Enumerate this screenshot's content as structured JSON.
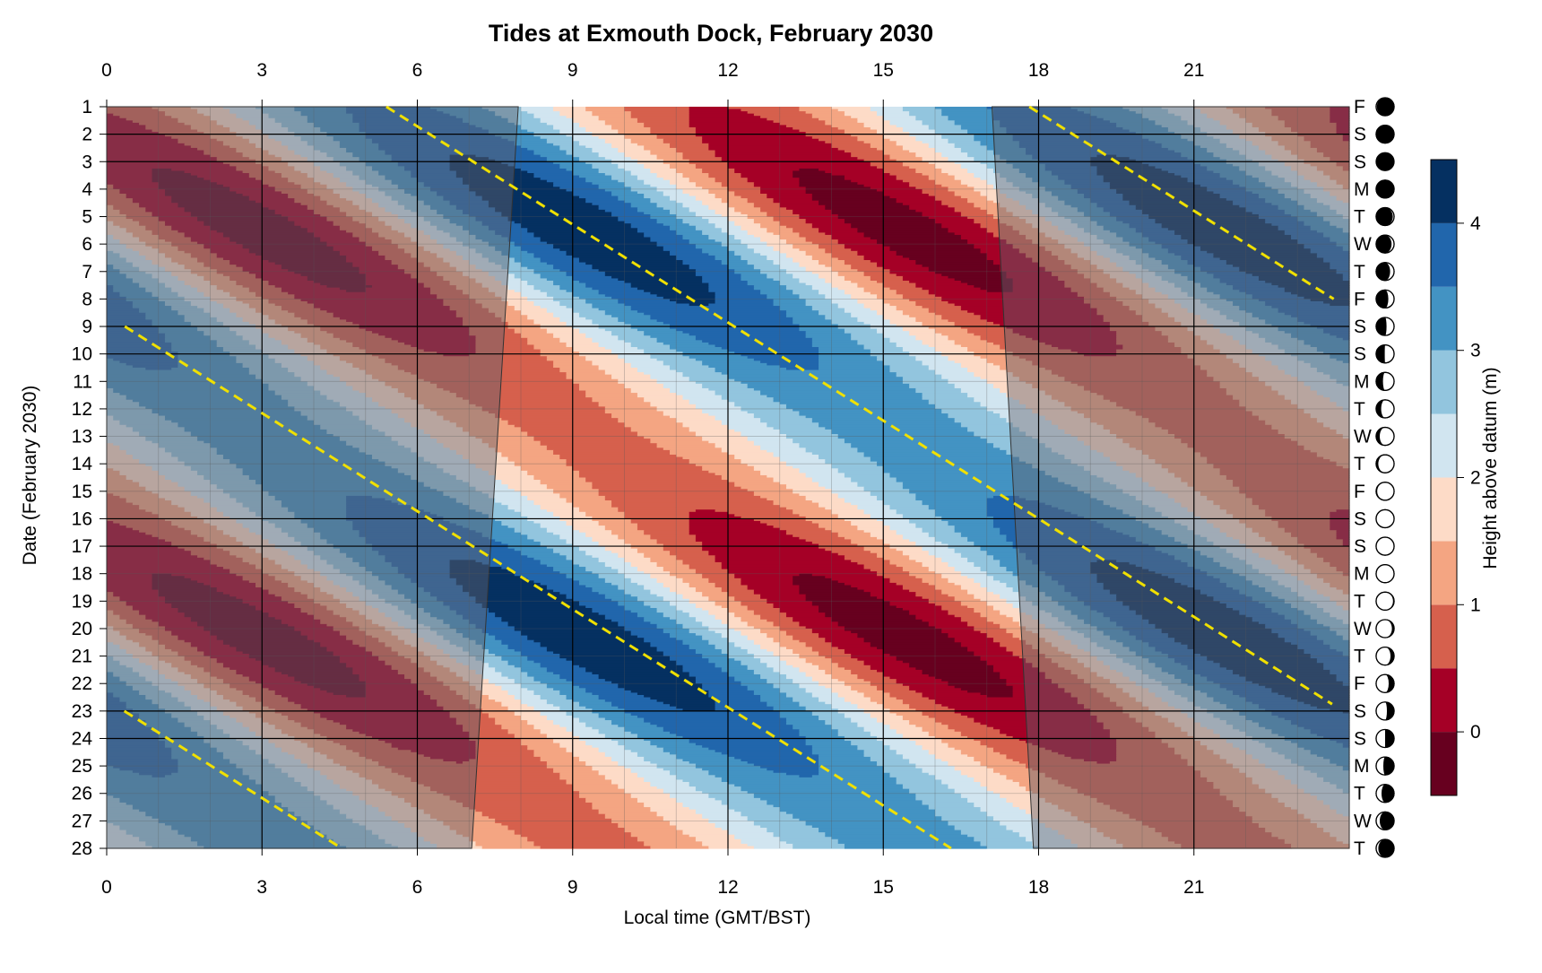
{
  "chart_data": {
    "type": "heatmap",
    "title": "Tides at Exmouth Dock, February 2030",
    "xlabel": "Local time (GMT/BST)",
    "ylabel": "Date (February 2030)",
    "xlim": [
      0,
      24
    ],
    "ylim": [
      1,
      28
    ],
    "x_ticks": [
      0,
      3,
      6,
      9,
      12,
      15,
      18,
      21
    ],
    "y_ticks": [
      1,
      2,
      3,
      4,
      5,
      6,
      7,
      8,
      9,
      10,
      11,
      12,
      13,
      14,
      15,
      16,
      17,
      18,
      19,
      20,
      21,
      22,
      23,
      24,
      25,
      26,
      27,
      28
    ],
    "legend": {
      "title": "Height above datum (m)",
      "placement": "right",
      "ticks": [
        0,
        1,
        2,
        3,
        4
      ],
      "levels": [
        -0.5,
        0,
        0.5,
        1,
        1.5,
        2,
        2.5,
        3,
        3.5,
        4,
        4.5
      ],
      "colors": [
        "#67001f",
        "#a50026",
        "#d6604d",
        "#f4a582",
        "#fddbc7",
        "#d1e5f0",
        "#92c5de",
        "#4393c3",
        "#2166ac",
        "#053061"
      ]
    },
    "tide_model": {
      "mean_level": 2.05,
      "semidiurnal_amplitude": 1.75,
      "spring_neap_modulation": 0.3,
      "period_hours": 12.42,
      "high_water_hour_day_1": 5.4,
      "daily_delay_hours": 0.84
    },
    "daylight": {
      "sunrise_day_1": 7.95,
      "sunrise_day_28": 7.05,
      "sunset_day_1": 17.1,
      "sunset_day_28": 17.9
    },
    "high_water_line_color": "#f0e000",
    "weekday_letters": [
      "F",
      "S",
      "S",
      "M",
      "T",
      "W",
      "T",
      "F",
      "S",
      "S",
      "M",
      "T",
      "W",
      "T",
      "F",
      "S",
      "S",
      "M",
      "T",
      "W",
      "T",
      "F",
      "S",
      "S",
      "M",
      "T",
      "W",
      "T"
    ],
    "moon_illuminated_fraction": [
      0.96,
      0.99,
      1.0,
      0.98,
      0.93,
      0.86,
      0.78,
      0.68,
      0.58,
      0.48,
      0.38,
      0.28,
      0.2,
      0.12,
      0.06,
      0.02,
      0.0,
      0.02,
      0.06,
      0.12,
      0.2,
      0.3,
      0.4,
      0.5,
      0.6,
      0.7,
      0.8,
      0.88
    ],
    "moon_waxing": [
      true,
      true,
      false,
      false,
      false,
      false,
      false,
      false,
      false,
      false,
      false,
      false,
      false,
      false,
      false,
      false,
      false,
      true,
      true,
      true,
      true,
      true,
      true,
      true,
      true,
      true,
      true,
      true
    ]
  }
}
